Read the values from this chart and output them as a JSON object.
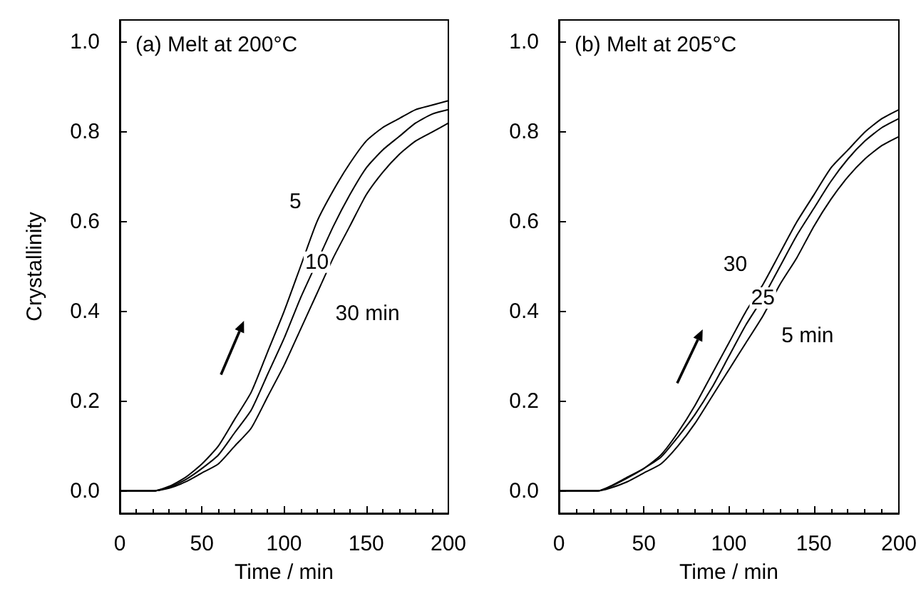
{
  "chart_data": [
    {
      "type": "line",
      "title": "(a) Melt at 200°C",
      "xlabel": "Time / min",
      "ylabel": "Crystallinity",
      "x": [
        0,
        21,
        30,
        40,
        50,
        60,
        70,
        80,
        90,
        100,
        110,
        120,
        130,
        140,
        150,
        160,
        170,
        180,
        190,
        200
      ],
      "series": [
        {
          "color": "#000000",
          "values": [
            0,
            0,
            0.01,
            0.03,
            0.06,
            0.1,
            0.16,
            0.22,
            0.31,
            0.4,
            0.5,
            0.6,
            0.67,
            0.73,
            0.78,
            0.81,
            0.83,
            0.85,
            0.86,
            0.87
          ]
        },
        {
          "color": "#000000",
          "values": [
            0,
            0,
            0.008,
            0.025,
            0.05,
            0.08,
            0.13,
            0.18,
            0.26,
            0.34,
            0.43,
            0.51,
            0.59,
            0.66,
            0.72,
            0.76,
            0.79,
            0.82,
            0.84,
            0.85
          ]
        },
        {
          "color": "#000000",
          "values": [
            0,
            0,
            0.006,
            0.02,
            0.04,
            0.06,
            0.1,
            0.14,
            0.21,
            0.28,
            0.36,
            0.44,
            0.52,
            0.59,
            0.66,
            0.71,
            0.75,
            0.78,
            0.8,
            0.82
          ]
        }
      ],
      "xlim": [
        0,
        200
      ],
      "xticks": [
        0,
        50,
        100,
        150,
        200
      ],
      "ylim": [
        -0.05,
        1.05
      ],
      "yticks": [
        {
          "value": 0,
          "label": "0.0"
        },
        {
          "value": 0.2,
          "label": "0.2"
        },
        {
          "value": 0.4,
          "label": "0.4"
        },
        {
          "value": 0.6,
          "label": "0.6"
        },
        {
          "value": 0.8,
          "label": "0.8"
        },
        {
          "value": 1,
          "label": "1.0"
        }
      ],
      "annotations": [
        "5",
        "10",
        "30 min"
      ],
      "marker": "none",
      "line_style": "solid"
    },
    {
      "type": "line",
      "title": "(b) Melt at 205°C",
      "xlabel": "Time / min",
      "x": [
        0,
        23,
        30,
        40,
        50,
        60,
        70,
        80,
        90,
        100,
        110,
        120,
        130,
        140,
        150,
        160,
        170,
        180,
        190,
        200
      ],
      "series": [
        {
          "color": "#000000",
          "values": [
            0,
            0,
            0.01,
            0.03,
            0.05,
            0.08,
            0.13,
            0.19,
            0.26,
            0.33,
            0.4,
            0.46,
            0.53,
            0.6,
            0.66,
            0.72,
            0.76,
            0.8,
            0.83,
            0.85
          ]
        },
        {
          "color": "#000000",
          "values": [
            0,
            0,
            0.009,
            0.028,
            0.05,
            0.075,
            0.12,
            0.17,
            0.23,
            0.3,
            0.37,
            0.43,
            0.5,
            0.57,
            0.63,
            0.69,
            0.74,
            0.78,
            0.81,
            0.83
          ]
        },
        {
          "color": "#000000",
          "values": [
            0,
            0,
            0.006,
            0.02,
            0.04,
            0.06,
            0.1,
            0.15,
            0.21,
            0.27,
            0.33,
            0.39,
            0.46,
            0.52,
            0.59,
            0.65,
            0.7,
            0.74,
            0.77,
            0.79
          ]
        }
      ],
      "xlim": [
        0,
        200
      ],
      "xticks": [
        0,
        50,
        100,
        150,
        200
      ],
      "ylim": [
        -0.05,
        1.05
      ],
      "yticks": [
        {
          "value": 0,
          "label": "0.0"
        },
        {
          "value": 0.2,
          "label": "0.2"
        },
        {
          "value": 0.4,
          "label": "0.4"
        },
        {
          "value": 0.6,
          "label": "0.6"
        },
        {
          "value": 0.8,
          "label": "0.8"
        },
        {
          "value": 1,
          "label": "1.0"
        }
      ],
      "annotations": [
        "30",
        "25",
        "5 min"
      ],
      "marker": "none",
      "line_style": "solid"
    }
  ]
}
